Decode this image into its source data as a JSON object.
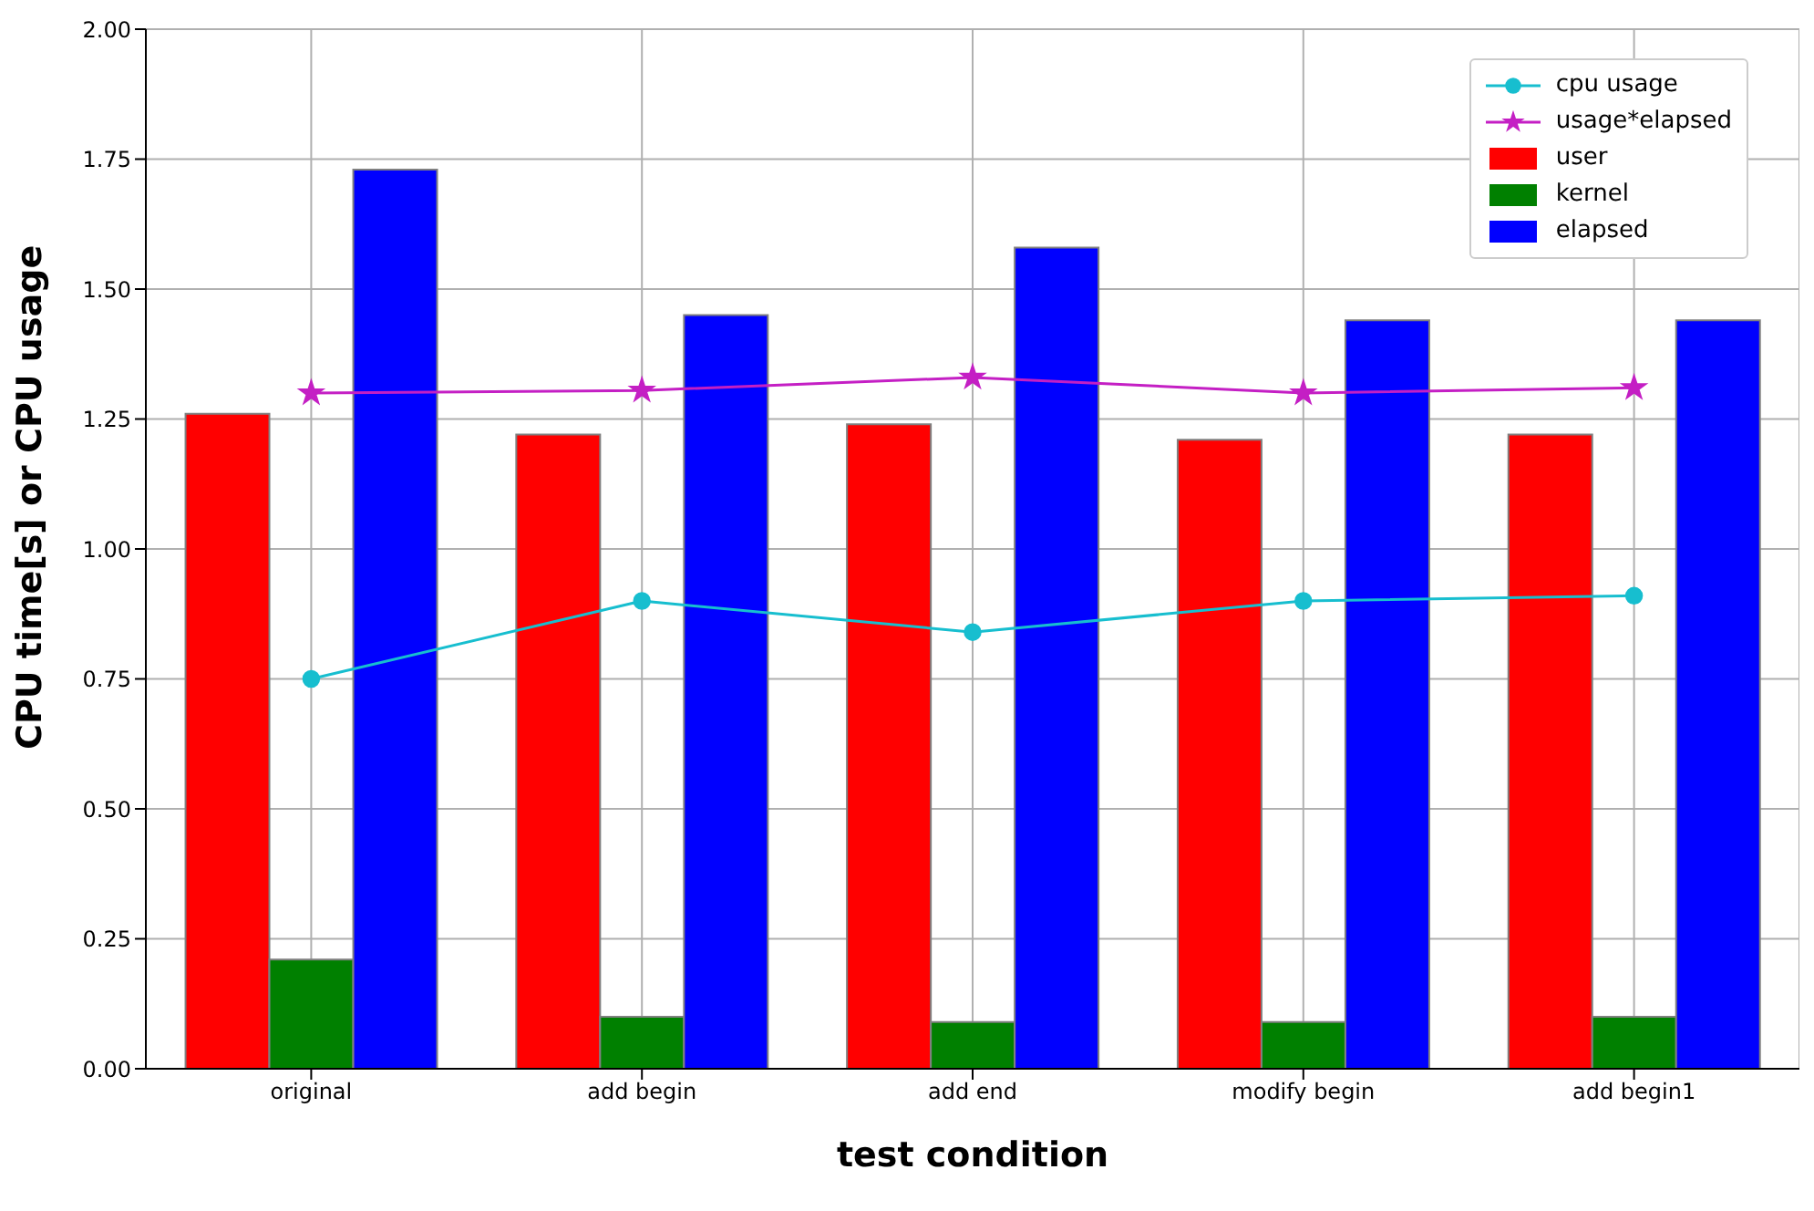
{
  "chart_data": {
    "type": "bar",
    "xlabel": "test condition",
    "ylabel": "CPU time[s] or CPU usage",
    "categories": [
      "original",
      "add begin",
      "add end",
      "modify begin",
      "add begin1"
    ],
    "series": [
      {
        "name": "cpu usage",
        "type": "line",
        "color": "#17becf",
        "marker": "circle",
        "values": [
          0.75,
          0.9,
          0.84,
          0.9,
          0.91
        ]
      },
      {
        "name": "usage*elapsed",
        "type": "line",
        "color": "#c41fc4",
        "marker": "star",
        "values": [
          1.3,
          1.305,
          1.33,
          1.3,
          1.31
        ]
      },
      {
        "name": "user",
        "color": "#ff0000",
        "values": [
          1.26,
          1.22,
          1.24,
          1.21,
          1.22
        ]
      },
      {
        "name": "kernel",
        "color": "#008000",
        "values": [
          0.21,
          0.1,
          0.09,
          0.09,
          0.1
        ]
      },
      {
        "name": "elapsed",
        "color": "#0000ff",
        "values": [
          1.73,
          1.45,
          1.58,
          1.44,
          1.44
        ]
      }
    ],
    "ylim": [
      0,
      2
    ],
    "yticks": [
      {
        "value": 0,
        "label": "0.00"
      },
      {
        "value": 0.25,
        "label": "0.25"
      },
      {
        "value": 0.5,
        "label": "0.50"
      },
      {
        "value": 0.75,
        "label": "0.75"
      },
      {
        "value": 1,
        "label": "1.00"
      },
      {
        "value": 1.25,
        "label": "1.25"
      },
      {
        "value": 1.5,
        "label": "1.50"
      },
      {
        "value": 1.75,
        "label": "1.75"
      },
      {
        "value": 2,
        "label": "2.00"
      }
    ],
    "grid": true,
    "legend": "top right"
  }
}
